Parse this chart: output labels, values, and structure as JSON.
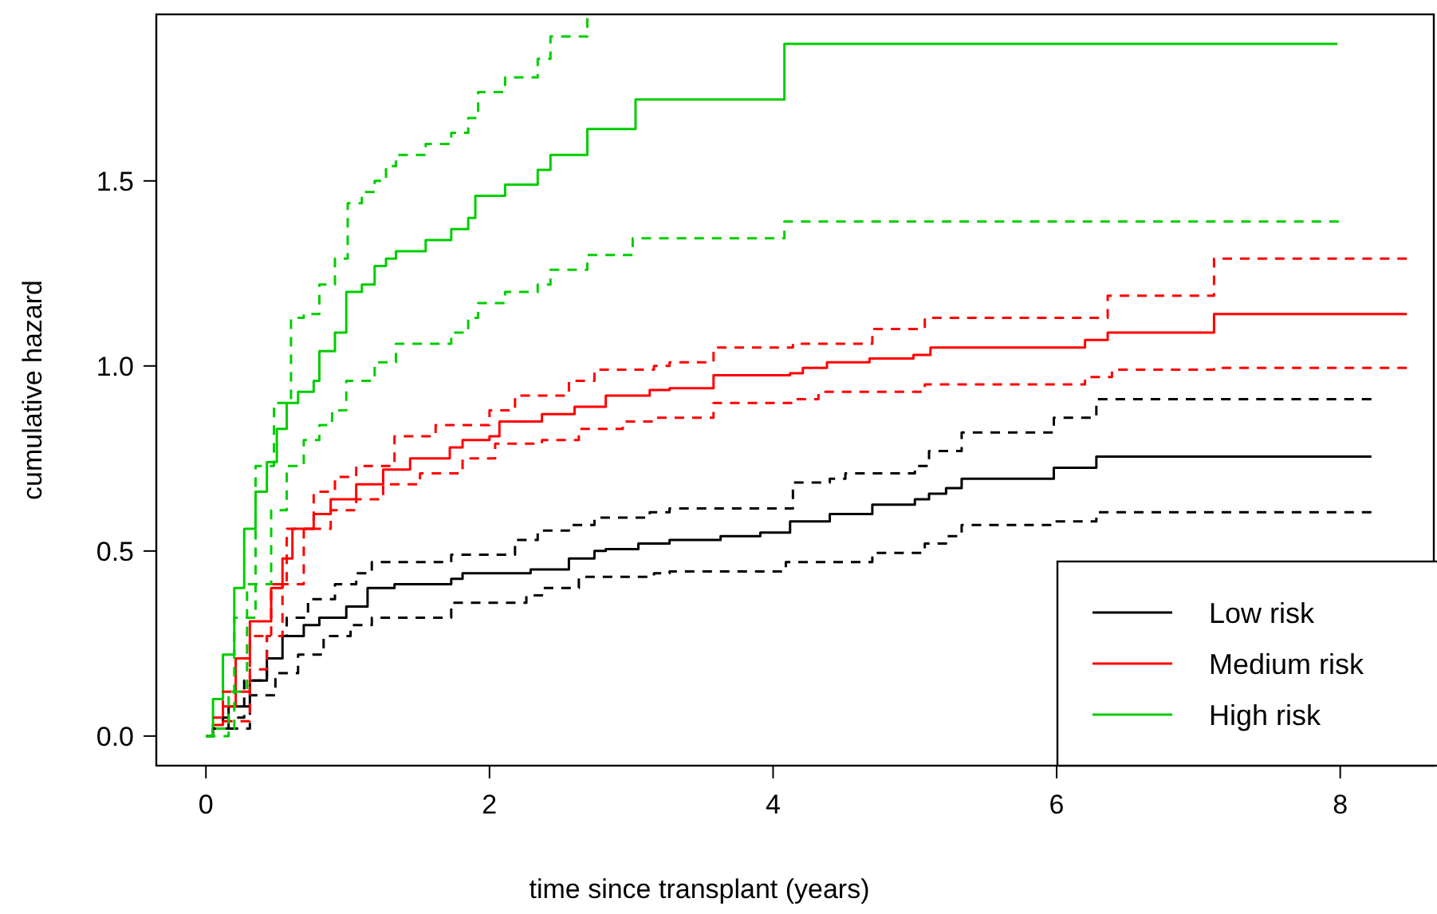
{
  "chart_data": {
    "type": "step",
    "xlabel": "time since transplant (years)",
    "ylabel": "cumulative hazard",
    "xlim": [
      -0.35,
      8.66
    ],
    "ylim": [
      -0.08,
      1.95
    ],
    "xticks": [
      0,
      2,
      4,
      6,
      8
    ],
    "yticks": [
      {
        "value": 0,
        "label": "0.0"
      },
      {
        "value": 0.5,
        "label": "0.5"
      },
      {
        "value": 1,
        "label": "1.0"
      },
      {
        "value": 1.5,
        "label": "1.5"
      }
    ],
    "grid": false,
    "legend": "bottom right",
    "marker": "none",
    "series": [
      {
        "name": "Low risk",
        "color": "#000000",
        "line_style": "solid",
        "x": [
          0,
          0.05,
          0.16,
          0.31,
          0.43,
          0.54,
          0.69,
          0.8,
          0.99,
          1.14,
          1.33,
          1.73,
          1.81,
          2.29,
          2.56,
          2.74,
          2.82,
          3.05,
          3.27,
          3.63,
          3.91,
          4.12,
          4.4,
          4.7,
          5.0,
          5.1,
          5.22,
          5.33,
          5.98,
          6.28,
          8.22
        ],
        "values": [
          0,
          0.02,
          0.08,
          0.15,
          0.21,
          0.27,
          0.3,
          0.32,
          0.35,
          0.4,
          0.41,
          0.425,
          0.44,
          0.45,
          0.48,
          0.5,
          0.505,
          0.52,
          0.53,
          0.54,
          0.55,
          0.58,
          0.6,
          0.625,
          0.64,
          0.655,
          0.67,
          0.695,
          0.725,
          0.755,
          0.755
        ]
      },
      {
        "name": "Medium risk",
        "color": "#ff0000",
        "line_style": "solid",
        "x": [
          0,
          0.05,
          0.12,
          0.21,
          0.31,
          0.46,
          0.54,
          0.61,
          0.76,
          0.88,
          1.06,
          1.25,
          1.44,
          1.72,
          1.81,
          2.0,
          2.07,
          2.37,
          2.6,
          2.82,
          3.13,
          3.27,
          3.58,
          4.12,
          4.21,
          4.38,
          4.68,
          4.99,
          5.11,
          6.2,
          6.36,
          7.11,
          8.47
        ],
        "values": [
          0,
          0.03,
          0.08,
          0.21,
          0.31,
          0.4,
          0.48,
          0.56,
          0.6,
          0.64,
          0.68,
          0.72,
          0.75,
          0.78,
          0.8,
          0.81,
          0.85,
          0.87,
          0.89,
          0.92,
          0.935,
          0.94,
          0.975,
          0.98,
          0.995,
          1.01,
          1.02,
          1.03,
          1.05,
          1.07,
          1.09,
          1.14,
          1.14
        ]
      },
      {
        "name": "High risk",
        "color": "#00cd00",
        "line_style": "solid",
        "x": [
          0,
          0.05,
          0.12,
          0.2,
          0.27,
          0.35,
          0.43,
          0.5,
          0.57,
          0.65,
          0.76,
          0.8,
          0.91,
          0.99,
          1.1,
          1.19,
          1.27,
          1.34,
          1.55,
          1.73,
          1.85,
          1.9,
          2.11,
          2.34,
          2.43,
          2.69,
          3.03,
          4.08,
          7.98
        ],
        "values": [
          0,
          0.1,
          0.22,
          0.4,
          0.56,
          0.66,
          0.74,
          0.83,
          0.9,
          0.93,
          0.96,
          1.04,
          1.09,
          1.2,
          1.22,
          1.27,
          1.29,
          1.31,
          1.34,
          1.37,
          1.4,
          1.46,
          1.49,
          1.53,
          1.57,
          1.64,
          1.72,
          1.87,
          1.87
        ]
      },
      {
        "color": "#000000",
        "line_style": "dashed",
        "x": [
          0.05,
          0.12,
          0.27,
          0.43,
          0.57,
          0.72,
          0.91,
          1.06,
          1.17,
          1.73,
          2.18,
          2.34,
          2.56,
          2.74,
          3.13,
          3.27,
          4.14,
          4.4,
          4.51,
          5.0,
          5.1,
          5.33,
          5.98,
          6.28,
          8.22
        ],
        "values": [
          0.02,
          0.05,
          0.15,
          0.27,
          0.32,
          0.37,
          0.41,
          0.44,
          0.47,
          0.49,
          0.53,
          0.555,
          0.57,
          0.59,
          0.605,
          0.615,
          0.685,
          0.695,
          0.71,
          0.73,
          0.77,
          0.82,
          0.86,
          0.91,
          0.91
        ]
      },
      {
        "color": "#000000",
        "line_style": "dashed",
        "x": [
          0.16,
          0.31,
          0.49,
          0.65,
          0.83,
          1.02,
          1.17,
          1.73,
          2.26,
          2.37,
          2.63,
          3.16,
          3.27,
          4.09,
          4.7,
          5.07,
          5.22,
          5.33,
          5.98,
          6.28,
          8.22
        ],
        "values": [
          0.02,
          0.11,
          0.17,
          0.22,
          0.27,
          0.3,
          0.32,
          0.36,
          0.38,
          0.4,
          0.43,
          0.44,
          0.445,
          0.47,
          0.495,
          0.52,
          0.54,
          0.57,
          0.58,
          0.605,
          0.605
        ]
      },
      {
        "color": "#ff0000",
        "line_style": "dashed",
        "x": [
          0.05,
          0.12,
          0.31,
          0.46,
          0.57,
          0.76,
          0.91,
          1.06,
          1.33,
          1.62,
          2.0,
          2.18,
          2.56,
          2.74,
          3.16,
          3.27,
          3.58,
          4.14,
          4.7,
          5.07,
          6.22,
          6.36,
          7.11,
          8.47
        ],
        "values": [
          0.05,
          0.12,
          0.27,
          0.41,
          0.56,
          0.66,
          0.7,
          0.73,
          0.81,
          0.84,
          0.88,
          0.92,
          0.96,
          0.99,
          1.0,
          1.01,
          1.05,
          1.06,
          1.1,
          1.13,
          1.13,
          1.19,
          1.29,
          1.29
        ]
      },
      {
        "color": "#ff0000",
        "line_style": "dashed",
        "x": [
          0.12,
          0.31,
          0.43,
          0.54,
          0.69,
          0.88,
          1.06,
          1.25,
          1.51,
          1.81,
          2.04,
          2.37,
          2.63,
          2.94,
          3.16,
          3.58,
          4.14,
          4.32,
          5.07,
          6.2,
          6.39,
          7.11,
          8.47
        ],
        "values": [
          0.04,
          0.18,
          0.27,
          0.41,
          0.56,
          0.61,
          0.64,
          0.68,
          0.71,
          0.75,
          0.79,
          0.8,
          0.83,
          0.85,
          0.86,
          0.9,
          0.91,
          0.93,
          0.95,
          0.97,
          0.99,
          0.995,
          0.995
        ]
      },
      {
        "color": "#00cd00",
        "line_style": "dashed",
        "x": [
          0,
          0.05,
          0.2,
          0.35,
          0.48,
          0.6,
          0.69,
          0.8,
          0.91,
          1.0,
          1.1,
          1.19,
          1.27,
          1.34,
          1.55,
          1.73,
          1.85,
          1.92,
          2.11,
          2.34,
          2.43,
          2.69
        ],
        "values": [
          0,
          0.02,
          0.32,
          0.73,
          0.9,
          1.13,
          1.14,
          1.22,
          1.29,
          1.44,
          1.47,
          1.5,
          1.54,
          1.57,
          1.6,
          1.63,
          1.67,
          1.74,
          1.78,
          1.83,
          1.89,
          1.94
        ]
      },
      {
        "color": "#00cd00",
        "line_style": "dashed",
        "x": [
          0,
          0.16,
          0.29,
          0.46,
          0.57,
          0.69,
          0.8,
          0.89,
          0.99,
          1.19,
          1.34,
          1.73,
          1.85,
          1.92,
          2.11,
          2.34,
          2.43,
          2.69,
          3.01,
          4.08,
          7.99
        ],
        "values": [
          0,
          0.12,
          0.41,
          0.61,
          0.73,
          0.8,
          0.84,
          0.88,
          0.96,
          1.01,
          1.06,
          1.09,
          1.13,
          1.17,
          1.2,
          1.22,
          1.26,
          1.3,
          1.345,
          1.39,
          1.39
        ]
      }
    ]
  }
}
